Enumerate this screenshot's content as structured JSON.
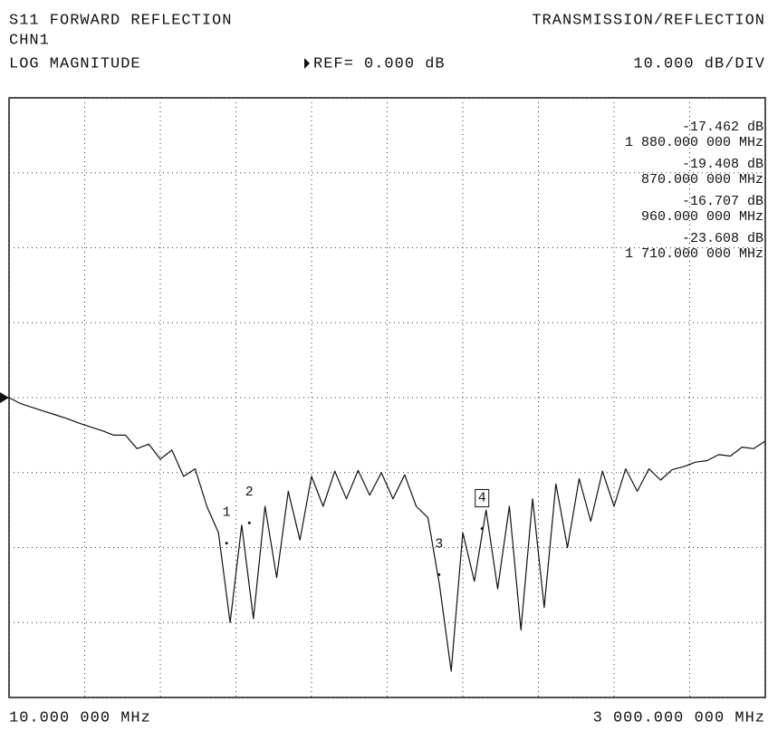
{
  "chart_data": {
    "type": "line",
    "title": "S11 FORWARD REFLECTION",
    "mode": "TRANSMISSION/REFLECTION",
    "channel": "CHN1",
    "format": "LOG MAGNITUDE",
    "ref_label": "REF= 0.000 dB",
    "scale_label": "10.000 dB/DIV",
    "start_label": "10.000 000 MHz",
    "stop_label": "3 000.000 000 MHz",
    "ref": 0,
    "xlim": [
      10,
      3000
    ],
    "xticks": [
      10,
      309,
      608,
      907,
      1206,
      1505,
      1804,
      2103,
      2402,
      2701,
      3000
    ],
    "ylim": [
      -40,
      40
    ],
    "yticks": [
      -40,
      -30,
      -20,
      -10,
      0,
      10,
      20,
      30,
      40
    ],
    "grid": true,
    "color": "#111111",
    "x": [
      10,
      56,
      102,
      148,
      194,
      240,
      286,
      332,
      378,
      424,
      470,
      516,
      562,
      608,
      654,
      700,
      746,
      792,
      838,
      884,
      930,
      976,
      1022,
      1068,
      1114,
      1160,
      1206,
      1252,
      1298,
      1344,
      1390,
      1436,
      1482,
      1528,
      1574,
      1620,
      1666,
      1712,
      1758,
      1804,
      1850,
      1896,
      1942,
      1988,
      2034,
      2080,
      2126,
      2172,
      2218,
      2264,
      2310,
      2356,
      2402,
      2448,
      2494,
      2540,
      2586,
      2632,
      2678,
      2724,
      2770,
      2816,
      2862,
      2908,
      2954,
      3000
    ],
    "values": [
      0,
      -0.8,
      -1.3,
      -1.8,
      -2.3,
      -2.8,
      -3.4,
      -3.9,
      -4.4,
      -5.0,
      -5.0,
      -6.8,
      -6.2,
      -8.2,
      -7.0,
      -10.5,
      -9.5,
      -14.5,
      -18.0,
      -30.0,
      -17.0,
      -29.5,
      -14.5,
      -24.0,
      -12.5,
      -19.0,
      -10.5,
      -14.5,
      -9.8,
      -13.5,
      -9.7,
      -13.0,
      -10.0,
      -13.5,
      -10.3,
      -14.5,
      -16.0,
      -25.0,
      -36.5,
      -18.0,
      -24.5,
      -15.0,
      -25.5,
      -14.5,
      -31.0,
      -13.5,
      -28.0,
      -11.5,
      -20.0,
      -10.8,
      -16.5,
      -9.8,
      -14.5,
      -9.5,
      -12.5,
      -9.5,
      -11.0,
      -9.6,
      -9.2,
      -8.6,
      -8.4,
      -7.6,
      -7.8,
      -6.6,
      -6.8,
      -5.8
    ],
    "markers": [
      {
        "name": "4",
        "x": 1880,
        "y": -17.462,
        "y_label": "-17.462 dB",
        "x_label": "1 880.000 000 MHz",
        "active": true
      },
      {
        "name": "1",
        "x": 870,
        "y": -19.408,
        "y_label": "-19.408 dB",
        "x_label": "870.000 000 MHz",
        "active": false
      },
      {
        "name": "2",
        "x": 960,
        "y": -16.707,
        "y_label": "-16.707 dB",
        "x_label": "960.000 000 MHz",
        "active": false
      },
      {
        "name": "3",
        "x": 1710,
        "y": -23.608,
        "y_label": "-23.608 dB",
        "x_label": "1 710.000 000 MHz",
        "active": false
      }
    ]
  }
}
